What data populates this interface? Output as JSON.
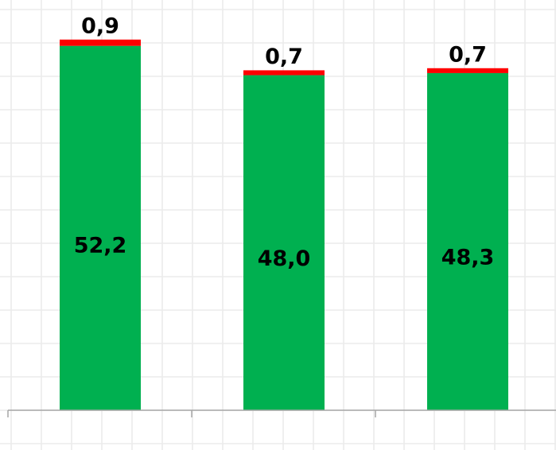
{
  "chart_data": {
    "type": "bar",
    "stacked": true,
    "categories": [
      "",
      "",
      ""
    ],
    "series": [
      {
        "values": [
          52.2,
          48.0,
          48.3
        ],
        "labels": [
          "52,2",
          "48,0",
          "48,3"
        ],
        "color": "#00b050"
      },
      {
        "values": [
          0.9,
          0.7,
          0.7
        ],
        "labels": [
          "0,9",
          "0,7",
          "0,7"
        ],
        "color": "#ff0000"
      }
    ],
    "title": "",
    "xlabel": "",
    "ylabel": "",
    "grid": true,
    "legend": "none"
  }
}
